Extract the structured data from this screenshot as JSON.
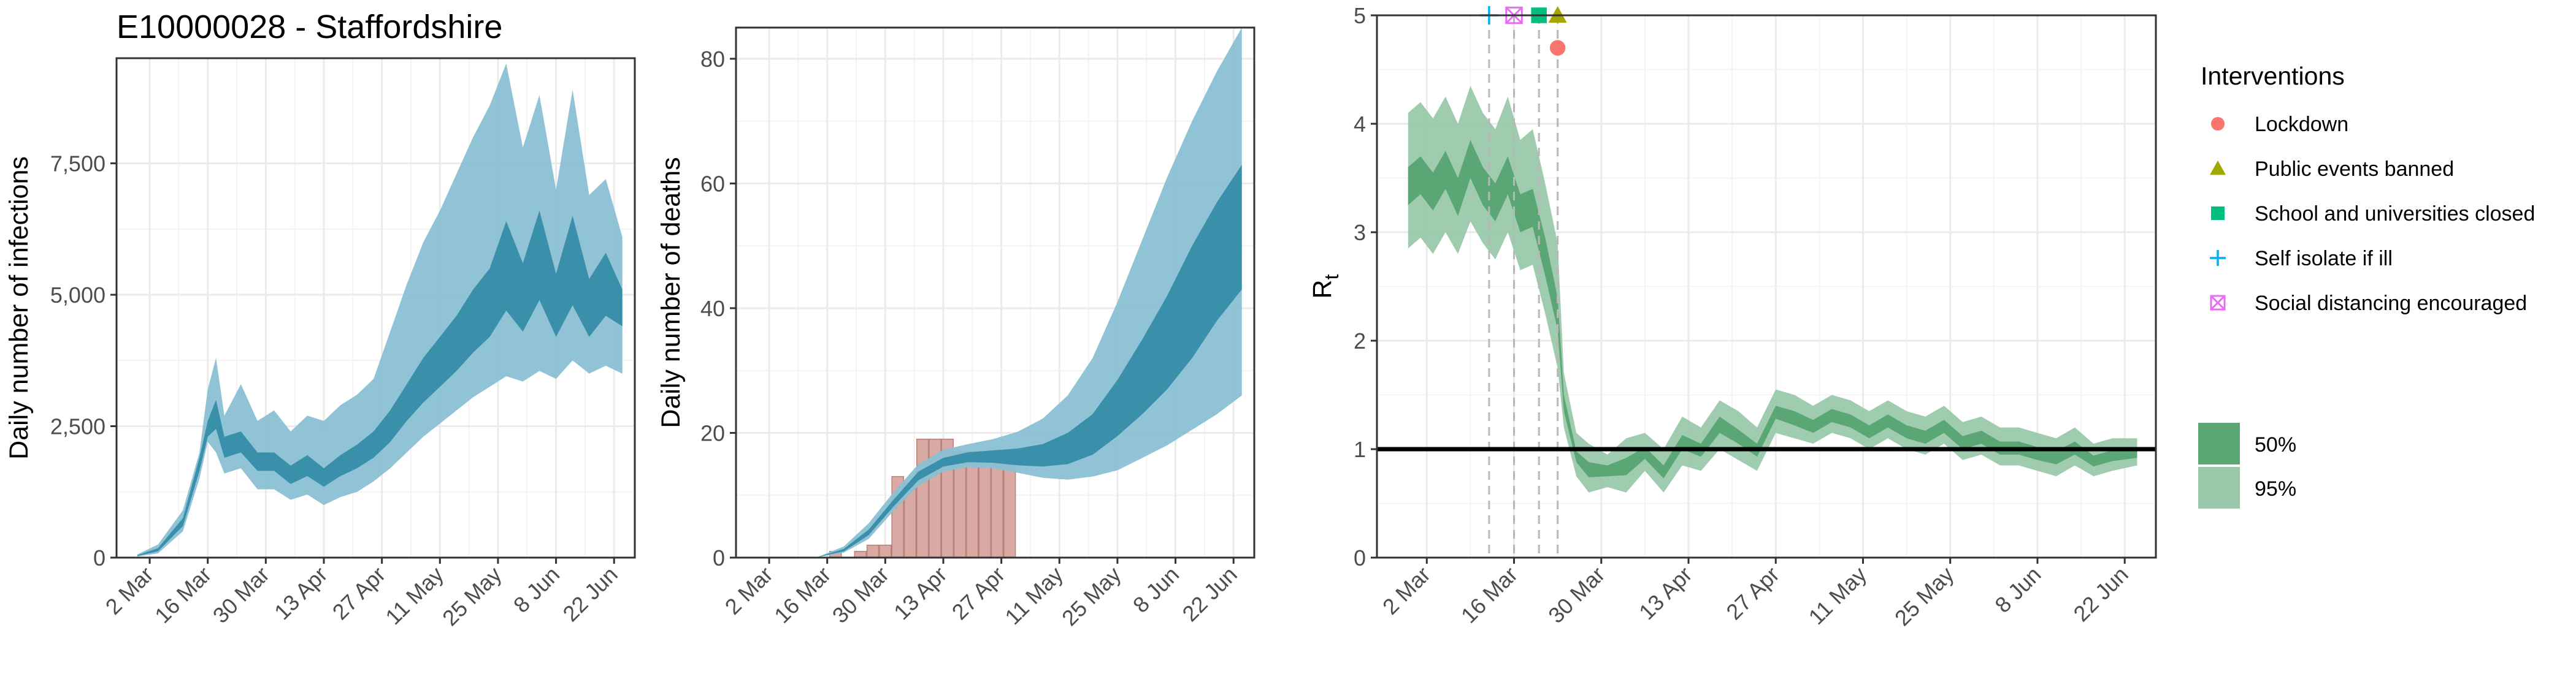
{
  "figure": {
    "title": "E10000028 - Staffordshire"
  },
  "colors": {
    "band95_blue": "#8ac0d3",
    "band50_blue": "#3a8fab",
    "bar_fill": "#d9a9a3",
    "bar_stroke": "#b8807a",
    "band50_green": "#5aa775",
    "band95_green": "#9ac8ab",
    "grid": "#ebebeb",
    "panel_border": "#333333",
    "lockdown": "#f8766d",
    "public_events": "#a3a500",
    "schools": "#00bf7d",
    "self_isolate": "#00b0f6",
    "social_distancing": "#e76bf3"
  },
  "chart_data": [
    {
      "type": "area",
      "id": "infections",
      "title": "E10000028 - Staffordshire",
      "xlabel": "",
      "ylabel": "Daily number of infections",
      "ylim": [
        0,
        9500
      ],
      "x_range_days": [
        "2020-02-23",
        "2020-06-27"
      ],
      "y_ticks": [
        0,
        2500,
        5000,
        7500
      ],
      "y_tick_labels": [
        "0",
        "2,500",
        "5,000",
        "7,500"
      ],
      "x_ticks": [
        "2020-03-02",
        "2020-03-16",
        "2020-03-30",
        "2020-04-13",
        "2020-04-27",
        "2020-05-11",
        "2020-05-25",
        "2020-06-08",
        "2020-06-22"
      ],
      "x_tick_labels": [
        "2 Mar",
        "16 Mar",
        "30 Mar",
        "13 Apr",
        "27 Apr",
        "11 May",
        "25 May",
        "8 Jun",
        "22 Jun"
      ],
      "grid": true,
      "bands": [
        {
          "level": "95%",
          "x": [
            "2020-02-28",
            "2020-03-04",
            "2020-03-10",
            "2020-03-14",
            "2020-03-16",
            "2020-03-18",
            "2020-03-20",
            "2020-03-24",
            "2020-03-28",
            "2020-04-01",
            "2020-04-05",
            "2020-04-09",
            "2020-04-13",
            "2020-04-17",
            "2020-04-21",
            "2020-04-25",
            "2020-04-29",
            "2020-05-03",
            "2020-05-07",
            "2020-05-11",
            "2020-05-15",
            "2020-05-19",
            "2020-05-23",
            "2020-05-27",
            "2020-05-31",
            "2020-06-04",
            "2020-06-08",
            "2020-06-12",
            "2020-06-16",
            "2020-06-20",
            "2020-06-24"
          ],
          "upper": [
            60,
            250,
            900,
            2000,
            3200,
            3800,
            2700,
            3300,
            2600,
            2800,
            2400,
            2700,
            2600,
            2900,
            3100,
            3400,
            4300,
            5200,
            6000,
            6600,
            7300,
            8000,
            8600,
            9400,
            7800,
            8800,
            7000,
            8900,
            6900,
            7200,
            6100
          ],
          "lower": [
            20,
            80,
            500,
            1500,
            2200,
            2000,
            1600,
            1700,
            1300,
            1300,
            1100,
            1200,
            1000,
            1150,
            1250,
            1450,
            1700,
            2000,
            2300,
            2550,
            2800,
            3050,
            3250,
            3450,
            3350,
            3550,
            3400,
            3750,
            3500,
            3650,
            3500
          ]
        },
        {
          "level": "50%",
          "x": [
            "2020-02-28",
            "2020-03-04",
            "2020-03-10",
            "2020-03-14",
            "2020-03-16",
            "2020-03-18",
            "2020-03-20",
            "2020-03-24",
            "2020-03-28",
            "2020-04-01",
            "2020-04-05",
            "2020-04-09",
            "2020-04-13",
            "2020-04-17",
            "2020-04-21",
            "2020-04-25",
            "2020-04-29",
            "2020-05-03",
            "2020-05-07",
            "2020-05-11",
            "2020-05-15",
            "2020-05-19",
            "2020-05-23",
            "2020-05-27",
            "2020-05-31",
            "2020-06-04",
            "2020-06-08",
            "2020-06-12",
            "2020-06-16",
            "2020-06-20",
            "2020-06-24"
          ],
          "upper": [
            45,
            180,
            750,
            1900,
            2600,
            3000,
            2300,
            2400,
            2000,
            2000,
            1750,
            1950,
            1700,
            1950,
            2150,
            2400,
            2800,
            3300,
            3800,
            4200,
            4600,
            5100,
            5500,
            6400,
            5600,
            6600,
            5400,
            6500,
            5300,
            5800,
            5100
          ],
          "lower": [
            30,
            120,
            600,
            1650,
            2300,
            2450,
            1900,
            2000,
            1650,
            1650,
            1400,
            1550,
            1350,
            1550,
            1700,
            1900,
            2200,
            2600,
            2950,
            3250,
            3550,
            3900,
            4200,
            4700,
            4300,
            4900,
            4200,
            4800,
            4200,
            4600,
            4400
          ]
        }
      ]
    },
    {
      "type": "area",
      "id": "deaths",
      "xlabel": "",
      "ylabel": "Daily number of deaths",
      "ylim": [
        0,
        85
      ],
      "y_ticks": [
        0,
        20,
        40,
        60,
        80
      ],
      "y_tick_labels": [
        "0",
        "20",
        "40",
        "60",
        "80"
      ],
      "x_range_days": [
        "2020-02-23",
        "2020-06-27"
      ],
      "x_ticks": [
        "2020-03-02",
        "2020-03-16",
        "2020-03-30",
        "2020-04-13",
        "2020-04-27",
        "2020-05-11",
        "2020-05-25",
        "2020-06-08",
        "2020-06-22"
      ],
      "x_tick_labels": [
        "2 Mar",
        "16 Mar",
        "30 Mar",
        "13 Apr",
        "27 Apr",
        "11 May",
        "25 May",
        "8 Jun",
        "22 Jun"
      ],
      "grid": true,
      "bars": {
        "x": [
          "2020-03-18",
          "2020-03-21",
          "2020-03-24",
          "2020-03-27",
          "2020-03-30",
          "2020-04-02",
          "2020-04-05",
          "2020-04-08",
          "2020-04-11",
          "2020-04-14",
          "2020-04-17",
          "2020-04-20",
          "2020-04-23",
          "2020-04-26",
          "2020-04-29"
        ],
        "values": [
          1,
          0,
          1,
          2,
          2,
          13,
          12,
          19,
          19,
          19,
          17,
          17,
          17,
          16,
          16
        ]
      },
      "bands": [
        {
          "level": "95%",
          "x": [
            "2020-03-14",
            "2020-03-20",
            "2020-03-26",
            "2020-04-01",
            "2020-04-07",
            "2020-04-13",
            "2020-04-19",
            "2020-04-25",
            "2020-05-01",
            "2020-05-07",
            "2020-05-13",
            "2020-05-19",
            "2020-05-25",
            "2020-05-31",
            "2020-06-06",
            "2020-06-12",
            "2020-06-18",
            "2020-06-24"
          ],
          "upper": [
            0.2,
            1.8,
            5.5,
            10.5,
            15.0,
            17.3,
            18.2,
            19.0,
            20.2,
            22.3,
            26.0,
            32.0,
            41.0,
            51.0,
            61.0,
            70.0,
            78.0,
            85.0
          ],
          "lower": [
            0.1,
            0.8,
            3.0,
            7.5,
            11.5,
            13.8,
            14.5,
            14.3,
            13.6,
            12.8,
            12.5,
            13.0,
            14.0,
            16.0,
            18.0,
            20.5,
            23.0,
            26.0
          ]
        },
        {
          "level": "50%",
          "x": [
            "2020-03-14",
            "2020-03-20",
            "2020-03-26",
            "2020-04-01",
            "2020-04-07",
            "2020-04-13",
            "2020-04-19",
            "2020-04-25",
            "2020-05-01",
            "2020-05-07",
            "2020-05-13",
            "2020-05-19",
            "2020-05-25",
            "2020-05-31",
            "2020-06-06",
            "2020-06-12",
            "2020-06-18",
            "2020-06-24"
          ],
          "upper": [
            0.15,
            1.4,
            4.5,
            9.3,
            13.8,
            16.0,
            16.9,
            17.2,
            17.5,
            18.2,
            20.0,
            23.0,
            28.5,
            35.0,
            42.0,
            50.0,
            57.0,
            63.0
          ],
          "lower": [
            0.12,
            1.0,
            3.6,
            8.2,
            12.4,
            14.6,
            15.3,
            15.2,
            14.8,
            14.6,
            15.0,
            16.5,
            19.5,
            23.0,
            27.0,
            32.0,
            38.0,
            43.0
          ]
        }
      ]
    },
    {
      "type": "area",
      "id": "rt",
      "xlabel": "",
      "ylabel": "R",
      "ylabel_subscript": "t",
      "ylim": [
        0,
        5
      ],
      "y_ticks": [
        0,
        1,
        2,
        3,
        4,
        5
      ],
      "y_tick_labels": [
        "0",
        "1",
        "2",
        "3",
        "4",
        "5"
      ],
      "x_range_days": [
        "2020-02-23",
        "2020-06-27"
      ],
      "x_ticks": [
        "2020-03-02",
        "2020-03-16",
        "2020-03-30",
        "2020-04-13",
        "2020-04-27",
        "2020-05-11",
        "2020-05-25",
        "2020-06-08",
        "2020-06-22"
      ],
      "x_tick_labels": [
        "2 Mar",
        "16 Mar",
        "30 Mar",
        "13 Apr",
        "27 Apr",
        "11 May",
        "25 May",
        "8 Jun",
        "22 Jun"
      ],
      "grid": true,
      "reference_line": 1,
      "bands": [
        {
          "level": "95%",
          "x": [
            "2020-02-28",
            "2020-03-01",
            "2020-03-03",
            "2020-03-05",
            "2020-03-07",
            "2020-03-09",
            "2020-03-11",
            "2020-03-13",
            "2020-03-15",
            "2020-03-17",
            "2020-03-19",
            "2020-03-21",
            "2020-03-23",
            "2020-03-24",
            "2020-03-26",
            "2020-03-28",
            "2020-03-31",
            "2020-04-03",
            "2020-04-06",
            "2020-04-09",
            "2020-04-12",
            "2020-04-15",
            "2020-04-18",
            "2020-04-21",
            "2020-04-24",
            "2020-04-27",
            "2020-04-30",
            "2020-05-03",
            "2020-05-06",
            "2020-05-09",
            "2020-05-12",
            "2020-05-15",
            "2020-05-18",
            "2020-05-21",
            "2020-05-24",
            "2020-05-27",
            "2020-05-30",
            "2020-06-02",
            "2020-06-05",
            "2020-06-08",
            "2020-06-11",
            "2020-06-14",
            "2020-06-17",
            "2020-06-20",
            "2020-06-24"
          ],
          "upper": [
            4.1,
            4.2,
            4.05,
            4.25,
            4.0,
            4.35,
            4.1,
            3.95,
            4.25,
            3.85,
            3.95,
            3.45,
            2.9,
            1.7,
            1.15,
            1.05,
            0.95,
            1.1,
            1.15,
            1.0,
            1.3,
            1.2,
            1.45,
            1.35,
            1.2,
            1.55,
            1.5,
            1.4,
            1.5,
            1.45,
            1.35,
            1.45,
            1.35,
            1.3,
            1.4,
            1.25,
            1.3,
            1.2,
            1.2,
            1.15,
            1.1,
            1.2,
            1.05,
            1.1,
            1.1
          ],
          "lower": [
            2.85,
            2.95,
            2.8,
            3.0,
            2.8,
            3.1,
            2.9,
            2.75,
            3.0,
            2.65,
            2.7,
            2.25,
            1.75,
            1.2,
            0.75,
            0.6,
            0.65,
            0.6,
            0.8,
            0.6,
            0.85,
            0.8,
            1.0,
            0.9,
            0.8,
            1.15,
            1.1,
            1.05,
            1.15,
            1.1,
            1.0,
            1.1,
            1.0,
            0.95,
            1.05,
            0.9,
            0.95,
            0.85,
            0.85,
            0.8,
            0.75,
            0.85,
            0.75,
            0.8,
            0.85
          ]
        },
        {
          "level": "50%",
          "x": [
            "2020-02-28",
            "2020-03-01",
            "2020-03-03",
            "2020-03-05",
            "2020-03-07",
            "2020-03-09",
            "2020-03-11",
            "2020-03-13",
            "2020-03-15",
            "2020-03-17",
            "2020-03-19",
            "2020-03-21",
            "2020-03-23",
            "2020-03-24",
            "2020-03-26",
            "2020-03-28",
            "2020-03-31",
            "2020-04-03",
            "2020-04-06",
            "2020-04-09",
            "2020-04-12",
            "2020-04-15",
            "2020-04-18",
            "2020-04-21",
            "2020-04-24",
            "2020-04-27",
            "2020-04-30",
            "2020-05-03",
            "2020-05-06",
            "2020-05-09",
            "2020-05-12",
            "2020-05-15",
            "2020-05-18",
            "2020-05-21",
            "2020-05-24",
            "2020-05-27",
            "2020-05-30",
            "2020-06-02",
            "2020-06-05",
            "2020-06-08",
            "2020-06-11",
            "2020-06-14",
            "2020-06-17",
            "2020-06-20",
            "2020-06-24"
          ],
          "upper": [
            3.6,
            3.7,
            3.55,
            3.75,
            3.5,
            3.85,
            3.6,
            3.45,
            3.7,
            3.35,
            3.4,
            2.95,
            2.4,
            1.5,
            0.98,
            0.88,
            0.85,
            0.92,
            1.02,
            0.85,
            1.13,
            1.05,
            1.3,
            1.18,
            1.05,
            1.4,
            1.35,
            1.27,
            1.37,
            1.32,
            1.22,
            1.32,
            1.22,
            1.17,
            1.27,
            1.12,
            1.17,
            1.07,
            1.07,
            1.02,
            0.98,
            1.07,
            0.94,
            0.99,
            1.0
          ],
          "lower": [
            3.25,
            3.35,
            3.2,
            3.4,
            3.15,
            3.5,
            3.25,
            3.1,
            3.35,
            3.0,
            3.05,
            2.6,
            2.1,
            1.35,
            0.88,
            0.74,
            0.75,
            0.76,
            0.91,
            0.73,
            1.0,
            0.93,
            1.15,
            1.05,
            0.93,
            1.28,
            1.22,
            1.15,
            1.25,
            1.2,
            1.1,
            1.2,
            1.1,
            1.05,
            1.15,
            1.0,
            1.05,
            0.95,
            0.95,
            0.9,
            0.86,
            0.95,
            0.84,
            0.89,
            0.92
          ]
        }
      ],
      "interventions": [
        {
          "name": "Self isolate if ill",
          "date": "2020-03-12",
          "marker": "plus",
          "color": "#00b0f6",
          "y": 5.0
        },
        {
          "name": "Social distancing encouraged",
          "date": "2020-03-16",
          "marker": "boxcross",
          "color": "#e76bf3",
          "y": 5.0
        },
        {
          "name": "School and universities closed",
          "date": "2020-03-20",
          "marker": "square",
          "color": "#00bf7d",
          "y": 5.0
        },
        {
          "name": "Public events banned",
          "date": "2020-03-23",
          "marker": "triangle",
          "color": "#a3a500",
          "y": 5.0
        },
        {
          "name": "Lockdown",
          "date": "2020-03-23",
          "marker": "circle",
          "color": "#f8766d",
          "y": 4.7
        }
      ]
    }
  ],
  "legend": {
    "interventions_title": "Interventions",
    "interventions": [
      {
        "label": "Lockdown",
        "marker": "circle",
        "color": "#f8766d"
      },
      {
        "label": "Public events banned",
        "marker": "triangle",
        "color": "#a3a500"
      },
      {
        "label": "School and universities closed",
        "marker": "square",
        "color": "#00bf7d"
      },
      {
        "label": "Self isolate if ill",
        "marker": "plus",
        "color": "#00b0f6"
      },
      {
        "label": "Social distancing encouraged",
        "marker": "boxcross",
        "color": "#e76bf3"
      }
    ],
    "bands": [
      {
        "label": "50%",
        "color": "#5aa775"
      },
      {
        "label": "95%",
        "color": "#9ac8ab"
      }
    ]
  }
}
